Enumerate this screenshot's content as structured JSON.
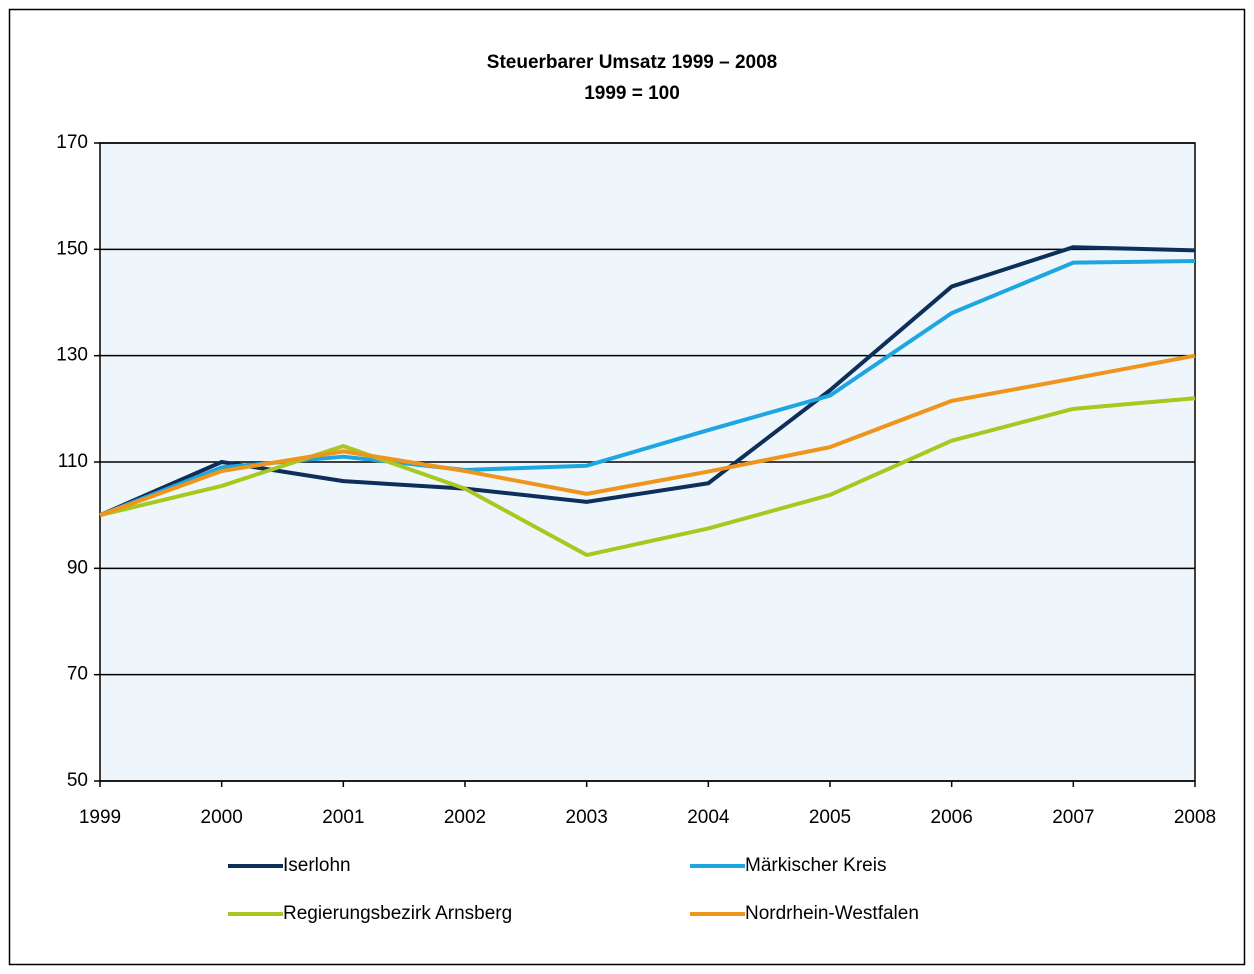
{
  "chart_data": {
    "type": "line",
    "title": "Steuerbarer Umsatz 1999 – 2008",
    "subtitle": "1999 = 100",
    "categories": [
      "1999",
      "2000",
      "2001",
      "2002",
      "2003",
      "2004",
      "2005",
      "2006",
      "2007",
      "2008"
    ],
    "series": [
      {
        "name": "Iserlohn",
        "color": "#0d2f5a",
        "values": [
          100,
          110,
          106.4,
          105,
          102.5,
          106,
          123.5,
          143,
          150.4,
          149.8
        ]
      },
      {
        "name": "Märkischer Kreis",
        "color": "#1ea6e0",
        "values": [
          100,
          109,
          111,
          108.5,
          109.3,
          116,
          122.5,
          138,
          147.5,
          147.8
        ]
      },
      {
        "name": "Regierungsbezirk Arnsberg",
        "color": "#a8c81f",
        "values": [
          100,
          105.5,
          113,
          105,
          92.5,
          97.5,
          103.8,
          114,
          120,
          122
        ]
      },
      {
        "name": "Nordrhein-Westfalen",
        "color": "#f0951c",
        "values": [
          100,
          108.3,
          112,
          108.3,
          104,
          108.2,
          112.8,
          121.5,
          125.7,
          130
        ]
      }
    ],
    "ylim": [
      50,
      170
    ],
    "yticks": [
      50,
      70,
      90,
      110,
      130,
      150,
      170
    ],
    "grid": true
  }
}
